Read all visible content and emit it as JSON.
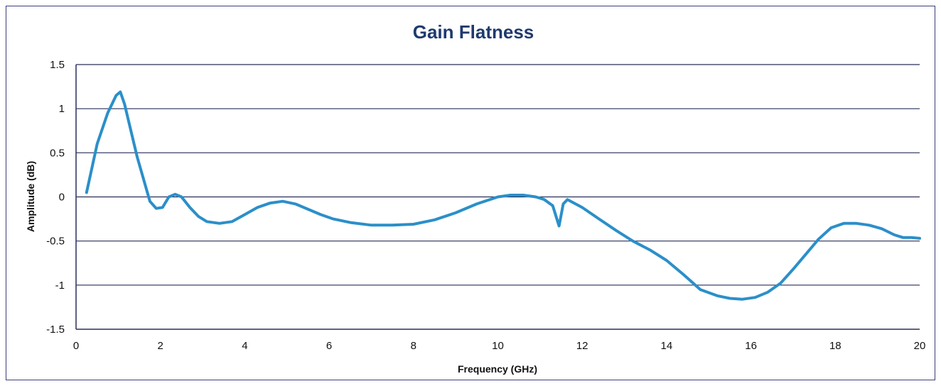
{
  "chart_data": {
    "type": "line",
    "title": "Gain Flatness",
    "xlabel": "Frequency (GHz)",
    "ylabel": "Amplitude (dB)",
    "xlim": [
      0,
      20
    ],
    "ylim": [
      -1.5,
      1.5
    ],
    "x_ticks": [
      "0",
      "2",
      "4",
      "6",
      "8",
      "10",
      "12",
      "14",
      "16",
      "18",
      "20"
    ],
    "y_ticks": [
      "1.5",
      "1",
      "0.5",
      "0",
      "-0.5",
      "-1",
      "-1.5"
    ],
    "grid": "horizontal",
    "legend": "none",
    "series": [
      {
        "color": "#2b8fc9",
        "x": [
          0.25,
          0.5,
          0.75,
          0.95,
          1.05,
          1.15,
          1.3,
          1.45,
          1.6,
          1.75,
          1.9,
          2.05,
          2.2,
          2.35,
          2.5,
          2.7,
          2.9,
          3.1,
          3.4,
          3.7,
          4.0,
          4.3,
          4.6,
          4.9,
          5.2,
          5.5,
          5.8,
          6.1,
          6.5,
          7.0,
          7.5,
          8.0,
          8.5,
          9.0,
          9.5,
          10.0,
          10.3,
          10.6,
          10.9,
          11.1,
          11.3,
          11.45,
          11.55,
          11.65,
          12.0,
          12.4,
          12.8,
          13.2,
          13.6,
          14.0,
          14.4,
          14.8,
          15.2,
          15.5,
          15.8,
          16.1,
          16.4,
          16.7,
          17.0,
          17.3,
          17.6,
          17.9,
          18.2,
          18.5,
          18.8,
          19.1,
          19.4,
          19.6,
          19.8,
          20.0
        ],
        "values": [
          0.05,
          0.6,
          0.95,
          1.15,
          1.19,
          1.05,
          0.75,
          0.45,
          0.2,
          -0.05,
          -0.13,
          -0.12,
          0.0,
          0.03,
          0.0,
          -0.12,
          -0.22,
          -0.28,
          -0.3,
          -0.28,
          -0.2,
          -0.12,
          -0.07,
          -0.05,
          -0.08,
          -0.14,
          -0.2,
          -0.25,
          -0.29,
          -0.32,
          -0.32,
          -0.31,
          -0.26,
          -0.18,
          -0.08,
          0.0,
          0.02,
          0.02,
          0.0,
          -0.03,
          -0.1,
          -0.33,
          -0.08,
          -0.03,
          -0.12,
          -0.25,
          -0.38,
          -0.5,
          -0.6,
          -0.72,
          -0.88,
          -1.05,
          -1.12,
          -1.15,
          -1.16,
          -1.14,
          -1.08,
          -0.98,
          -0.82,
          -0.65,
          -0.48,
          -0.35,
          -0.3,
          -0.3,
          -0.32,
          -0.36,
          -0.43,
          -0.46,
          -0.46,
          -0.47
        ]
      }
    ]
  }
}
